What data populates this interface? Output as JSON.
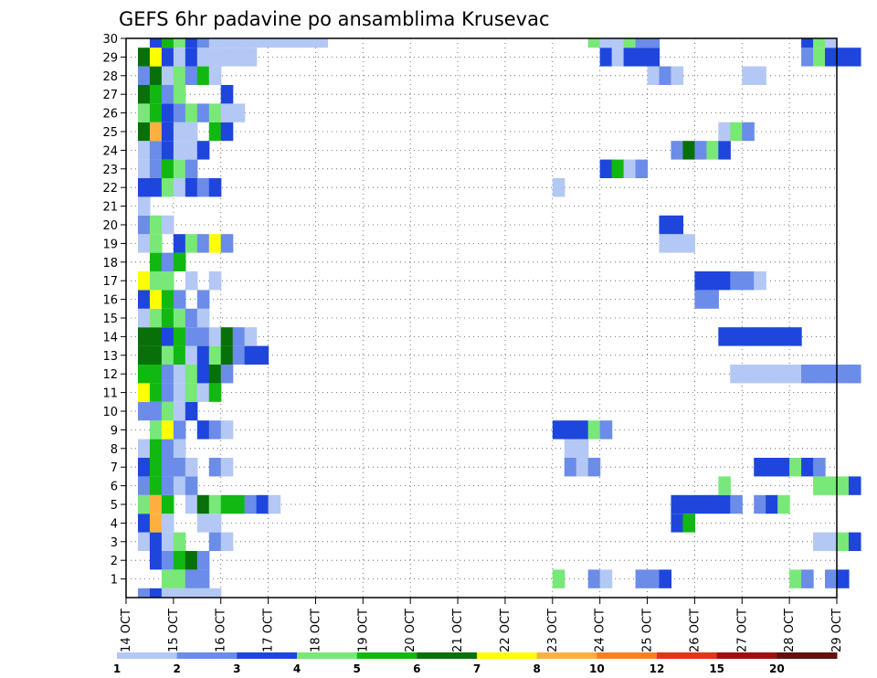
{
  "chart_data": {
    "type": "heatmap",
    "title": "GEFS 6hr padavine po ansamblima Krusevac",
    "xlabel": "",
    "ylabel": "",
    "x_ticks": [
      "14 OCT",
      "15 OCT",
      "16 OCT",
      "17 OCT",
      "18 OCT",
      "19 OCT",
      "20 OCT",
      "21 OCT",
      "22 OCT",
      "23 OCT",
      "24 OCT",
      "25 OCT",
      "26 OCT",
      "27 OCT",
      "28 OCT",
      "29 OCT"
    ],
    "x_steps_6h": 60,
    "y_ticks": [
      1,
      2,
      3,
      4,
      5,
      6,
      7,
      8,
      9,
      10,
      11,
      12,
      13,
      14,
      15,
      16,
      17,
      18,
      19,
      20,
      21,
      22,
      23,
      24,
      25,
      26,
      27,
      28,
      29,
      30
    ],
    "ylim": [
      0,
      30
    ],
    "grid": true,
    "legend_levels": [
      "1",
      "2",
      "3",
      "4",
      "5",
      "6",
      "7",
      "8",
      "10",
      "12",
      "15",
      "20"
    ],
    "colors": [
      "#b4c8f5",
      "#6b8ce8",
      "#1e46dc",
      "#78e878",
      "#12b812",
      "#087008",
      "#ffff00",
      "#fdb040",
      "#fa8020",
      "#e63218",
      "#a01010",
      "#641010"
    ],
    "cells": [
      [
        0,
        1,
        1
      ],
      [
        0,
        2,
        2
      ],
      [
        0,
        3,
        0
      ],
      [
        0,
        4,
        0
      ],
      [
        0,
        5,
        0
      ],
      [
        0,
        6,
        0
      ],
      [
        0,
        7,
        0
      ],
      [
        1,
        3,
        3
      ],
      [
        1,
        4,
        3
      ],
      [
        1,
        5,
        1
      ],
      [
        1,
        6,
        1
      ],
      [
        2,
        2,
        2
      ],
      [
        2,
        3,
        1
      ],
      [
        2,
        4,
        4
      ],
      [
        2,
        5,
        5
      ],
      [
        2,
        6,
        1
      ],
      [
        3,
        1,
        0
      ],
      [
        3,
        2,
        2
      ],
      [
        3,
        3,
        0
      ],
      [
        3,
        4,
        3
      ],
      [
        3,
        7,
        1
      ],
      [
        3,
        8,
        0
      ],
      [
        4,
        1,
        2
      ],
      [
        4,
        2,
        7
      ],
      [
        4,
        3,
        0
      ],
      [
        4,
        6,
        0
      ],
      [
        4,
        7,
        0
      ],
      [
        5,
        1,
        3
      ],
      [
        5,
        2,
        7
      ],
      [
        5,
        3,
        4
      ],
      [
        5,
        5,
        0
      ],
      [
        5,
        6,
        5
      ],
      [
        5,
        7,
        3
      ],
      [
        5,
        8,
        4
      ],
      [
        5,
        9,
        4
      ],
      [
        5,
        10,
        1
      ],
      [
        5,
        11,
        2
      ],
      [
        5,
        12,
        0
      ],
      [
        6,
        1,
        1
      ],
      [
        6,
        2,
        4
      ],
      [
        6,
        3,
        1
      ],
      [
        6,
        4,
        0
      ],
      [
        6,
        5,
        1
      ],
      [
        7,
        1,
        2
      ],
      [
        7,
        2,
        4
      ],
      [
        7,
        3,
        1
      ],
      [
        7,
        4,
        1
      ],
      [
        7,
        5,
        0
      ],
      [
        7,
        7,
        1
      ],
      [
        7,
        8,
        0
      ],
      [
        8,
        1,
        0
      ],
      [
        8,
        2,
        4
      ],
      [
        8,
        3,
        1
      ],
      [
        8,
        4,
        0
      ],
      [
        9,
        2,
        3
      ],
      [
        9,
        3,
        6
      ],
      [
        9,
        4,
        1
      ],
      [
        9,
        6,
        2
      ],
      [
        9,
        7,
        1
      ],
      [
        9,
        8,
        0
      ],
      [
        10,
        1,
        1
      ],
      [
        10,
        2,
        1
      ],
      [
        10,
        3,
        3
      ],
      [
        10,
        4,
        0
      ],
      [
        10,
        5,
        2
      ],
      [
        11,
        1,
        6
      ],
      [
        11,
        2,
        4
      ],
      [
        11,
        3,
        1
      ],
      [
        11,
        4,
        0
      ],
      [
        11,
        5,
        3
      ],
      [
        11,
        6,
        0
      ],
      [
        11,
        7,
        4
      ],
      [
        12,
        1,
        4
      ],
      [
        12,
        2,
        4
      ],
      [
        12,
        3,
        1
      ],
      [
        12,
        4,
        0
      ],
      [
        12,
        5,
        3
      ],
      [
        12,
        6,
        2
      ],
      [
        12,
        7,
        5
      ],
      [
        12,
        8,
        1
      ],
      [
        13,
        1,
        5
      ],
      [
        13,
        2,
        5
      ],
      [
        13,
        3,
        3
      ],
      [
        13,
        4,
        4
      ],
      [
        13,
        5,
        0
      ],
      [
        13,
        6,
        2
      ],
      [
        13,
        7,
        3
      ],
      [
        13,
        8,
        5
      ],
      [
        13,
        9,
        1
      ],
      [
        13,
        10,
        2
      ],
      [
        13,
        11,
        2
      ],
      [
        14,
        1,
        5
      ],
      [
        14,
        2,
        5
      ],
      [
        14,
        3,
        2
      ],
      [
        14,
        4,
        4
      ],
      [
        14,
        5,
        1
      ],
      [
        14,
        6,
        1
      ],
      [
        14,
        7,
        0
      ],
      [
        14,
        8,
        5
      ],
      [
        14,
        9,
        1
      ],
      [
        14,
        10,
        0
      ],
      [
        15,
        1,
        0
      ],
      [
        15,
        2,
        3
      ],
      [
        15,
        3,
        4
      ],
      [
        15,
        4,
        3
      ],
      [
        15,
        5,
        1
      ],
      [
        15,
        6,
        0
      ],
      [
        16,
        1,
        2
      ],
      [
        16,
        2,
        6
      ],
      [
        16,
        3,
        4
      ],
      [
        16,
        4,
        1
      ],
      [
        16,
        6,
        1
      ],
      [
        17,
        1,
        6
      ],
      [
        17,
        2,
        3
      ],
      [
        17,
        3,
        3
      ],
      [
        17,
        5,
        0
      ],
      [
        17,
        7,
        0
      ],
      [
        18,
        2,
        4
      ],
      [
        18,
        3,
        1
      ],
      [
        18,
        4,
        4
      ],
      [
        19,
        1,
        0
      ],
      [
        19,
        2,
        3
      ],
      [
        19,
        4,
        2
      ],
      [
        19,
        5,
        3
      ],
      [
        19,
        6,
        1
      ],
      [
        19,
        7,
        6
      ],
      [
        19,
        8,
        1
      ],
      [
        20,
        1,
        1
      ],
      [
        20,
        2,
        3
      ],
      [
        20,
        3,
        0
      ],
      [
        21,
        1,
        0
      ],
      [
        22,
        1,
        2
      ],
      [
        22,
        2,
        2
      ],
      [
        22,
        3,
        3
      ],
      [
        22,
        4,
        0
      ],
      [
        22,
        5,
        2
      ],
      [
        22,
        6,
        1
      ],
      [
        22,
        7,
        2
      ],
      [
        23,
        1,
        0
      ],
      [
        23,
        2,
        1
      ],
      [
        23,
        3,
        4
      ],
      [
        23,
        4,
        3
      ],
      [
        23,
        5,
        1
      ],
      [
        24,
        1,
        0
      ],
      [
        24,
        2,
        1
      ],
      [
        24,
        3,
        2
      ],
      [
        24,
        4,
        0
      ],
      [
        24,
        5,
        0
      ],
      [
        24,
        6,
        2
      ],
      [
        25,
        1,
        5
      ],
      [
        25,
        2,
        7
      ],
      [
        25,
        3,
        2
      ],
      [
        25,
        4,
        0
      ],
      [
        25,
        5,
        0
      ],
      [
        25,
        7,
        4
      ],
      [
        25,
        8,
        2
      ],
      [
        26,
        1,
        3
      ],
      [
        26,
        2,
        4
      ],
      [
        26,
        3,
        2
      ],
      [
        26,
        4,
        1
      ],
      [
        26,
        5,
        3
      ],
      [
        26,
        6,
        1
      ],
      [
        26,
        7,
        3
      ],
      [
        26,
        8,
        0
      ],
      [
        26,
        9,
        0
      ],
      [
        27,
        1,
        5
      ],
      [
        27,
        2,
        4
      ],
      [
        27,
        3,
        1
      ],
      [
        27,
        4,
        3
      ],
      [
        27,
        8,
        2
      ],
      [
        28,
        1,
        1
      ],
      [
        28,
        2,
        5
      ],
      [
        28,
        3,
        0
      ],
      [
        28,
        4,
        3
      ],
      [
        28,
        5,
        1
      ],
      [
        28,
        6,
        4
      ],
      [
        28,
        7,
        0
      ],
      [
        29,
        1,
        5
      ],
      [
        29,
        2,
        6
      ],
      [
        29,
        3,
        2
      ],
      [
        29,
        4,
        0
      ],
      [
        29,
        5,
        2
      ],
      [
        29,
        6,
        0
      ],
      [
        29,
        7,
        0
      ],
      [
        29,
        8,
        0
      ],
      [
        29,
        9,
        0
      ],
      [
        29,
        10,
        0
      ],
      [
        30,
        2,
        2
      ],
      [
        30,
        3,
        4
      ],
      [
        30,
        4,
        3
      ],
      [
        30,
        5,
        2
      ],
      [
        30,
        6,
        1
      ],
      [
        30,
        7,
        0
      ],
      [
        30,
        8,
        0
      ],
      [
        30,
        9,
        0
      ],
      [
        30,
        10,
        0
      ],
      [
        30,
        11,
        0
      ],
      [
        30,
        12,
        0
      ],
      [
        1,
        36,
        3
      ],
      [
        1,
        39,
        1
      ],
      [
        1,
        40,
        0
      ],
      [
        1,
        43,
        1
      ],
      [
        1,
        44,
        1
      ],
      [
        1,
        45,
        2
      ],
      [
        1,
        56,
        3
      ],
      [
        1,
        57,
        1
      ],
      [
        1,
        59,
        1
      ],
      [
        1,
        60,
        2
      ],
      [
        3,
        58,
        0
      ],
      [
        3,
        59,
        0
      ],
      [
        3,
        60,
        3
      ],
      [
        3,
        61,
        2
      ],
      [
        4,
        46,
        2
      ],
      [
        4,
        47,
        4
      ],
      [
        5,
        46,
        2
      ],
      [
        5,
        47,
        2
      ],
      [
        5,
        48,
        2
      ],
      [
        5,
        49,
        2
      ],
      [
        5,
        50,
        2
      ],
      [
        5,
        51,
        1
      ],
      [
        5,
        53,
        1
      ],
      [
        5,
        54,
        2
      ],
      [
        5,
        55,
        3
      ],
      [
        6,
        50,
        3
      ],
      [
        6,
        58,
        3
      ],
      [
        6,
        59,
        3
      ],
      [
        6,
        60,
        3
      ],
      [
        6,
        61,
        2
      ],
      [
        7,
        37,
        1
      ],
      [
        7,
        38,
        0
      ],
      [
        7,
        39,
        1
      ],
      [
        7,
        53,
        2
      ],
      [
        7,
        54,
        2
      ],
      [
        7,
        55,
        2
      ],
      [
        7,
        56,
        3
      ],
      [
        7,
        57,
        2
      ],
      [
        7,
        58,
        1
      ],
      [
        8,
        37,
        0
      ],
      [
        8,
        38,
        0
      ],
      [
        9,
        36,
        2
      ],
      [
        9,
        37,
        2
      ],
      [
        9,
        38,
        2
      ],
      [
        9,
        39,
        3
      ],
      [
        9,
        40,
        1
      ],
      [
        12,
        51,
        0
      ],
      [
        12,
        52,
        0
      ],
      [
        12,
        53,
        0
      ],
      [
        12,
        54,
        0
      ],
      [
        12,
        55,
        0
      ],
      [
        12,
        56,
        0
      ],
      [
        12,
        57,
        1
      ],
      [
        12,
        58,
        1
      ],
      [
        12,
        59,
        1
      ],
      [
        12,
        60,
        1
      ],
      [
        12,
        61,
        1
      ],
      [
        14,
        50,
        2
      ],
      [
        14,
        51,
        2
      ],
      [
        14,
        52,
        2
      ],
      [
        14,
        53,
        2
      ],
      [
        14,
        54,
        2
      ],
      [
        14,
        55,
        2
      ],
      [
        14,
        56,
        2
      ],
      [
        16,
        48,
        1
      ],
      [
        16,
        49,
        1
      ],
      [
        17,
        48,
        2
      ],
      [
        17,
        49,
        2
      ],
      [
        17,
        50,
        2
      ],
      [
        17,
        51,
        1
      ],
      [
        17,
        52,
        1
      ],
      [
        17,
        53,
        0
      ],
      [
        19,
        45,
        0
      ],
      [
        19,
        46,
        0
      ],
      [
        19,
        47,
        0
      ],
      [
        20,
        45,
        2
      ],
      [
        20,
        46,
        2
      ],
      [
        22,
        36,
        0
      ],
      [
        23,
        40,
        2
      ],
      [
        23,
        41,
        4
      ],
      [
        23,
        42,
        0
      ],
      [
        23,
        43,
        1
      ],
      [
        24,
        46,
        1
      ],
      [
        24,
        47,
        5
      ],
      [
        24,
        48,
        1
      ],
      [
        24,
        49,
        3
      ],
      [
        24,
        50,
        2
      ],
      [
        25,
        50,
        0
      ],
      [
        25,
        51,
        3
      ],
      [
        25,
        52,
        1
      ],
      [
        28,
        44,
        0
      ],
      [
        28,
        45,
        1
      ],
      [
        28,
        46,
        0
      ],
      [
        28,
        52,
        0
      ],
      [
        28,
        53,
        0
      ],
      [
        29,
        40,
        2
      ],
      [
        29,
        41,
        0
      ],
      [
        29,
        42,
        2
      ],
      [
        29,
        43,
        2
      ],
      [
        29,
        44,
        2
      ],
      [
        29,
        57,
        1
      ],
      [
        29,
        58,
        3
      ],
      [
        29,
        59,
        2
      ],
      [
        29,
        60,
        2
      ],
      [
        29,
        61,
        2
      ],
      [
        30,
        13,
        0
      ],
      [
        30,
        14,
        0
      ],
      [
        30,
        15,
        0
      ],
      [
        30,
        16,
        0
      ],
      [
        30,
        39,
        3
      ],
      [
        30,
        40,
        0
      ],
      [
        30,
        41,
        0
      ],
      [
        30,
        42,
        3
      ],
      [
        30,
        43,
        1
      ],
      [
        30,
        44,
        1
      ],
      [
        30,
        57,
        2
      ],
      [
        30,
        58,
        3
      ],
      [
        30,
        59,
        0
      ]
    ]
  }
}
